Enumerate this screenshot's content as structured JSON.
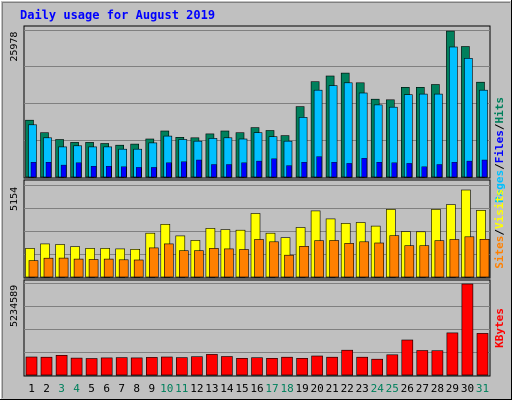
{
  "title": "Daily usage for August 2019",
  "colors": {
    "background": "#c0c0c0",
    "frame": "#000000",
    "title": "#0000ff",
    "gridline": "#808080",
    "hits": "#00805c",
    "files": "#00c0ff",
    "pages": "#0000ff",
    "visits": "#ffff00",
    "sites": "#ff8000",
    "kbytes": "#ff0000",
    "weekend_label": "#00805c",
    "weekday_label": "#000000"
  },
  "chart_data": [
    {
      "type": "bar",
      "panel": "hits-files-pages",
      "categories": [
        "1",
        "2",
        "3",
        "4",
        "5",
        "6",
        "7",
        "8",
        "9",
        "10",
        "11",
        "12",
        "13",
        "14",
        "15",
        "16",
        "17",
        "18",
        "19",
        "20",
        "21",
        "22",
        "23",
        "24",
        "25",
        "26",
        "27",
        "28",
        "29",
        "30",
        "31"
      ],
      "weekend_days": [
        "3",
        "4",
        "10",
        "11",
        "17",
        "18",
        "24",
        "25",
        "31"
      ],
      "axis_max_label": "25978",
      "ylim": [
        0,
        25978
      ],
      "legend": [
        {
          "label": "Hits",
          "color": "#00805c"
        },
        {
          "label": "/",
          "color": "#000000"
        },
        {
          "label": "Files",
          "color": "#0000ff"
        },
        {
          "label": "/",
          "color": "#000000"
        },
        {
          "label": "Pages",
          "color": "#00c0ff"
        }
      ],
      "series": [
        {
          "name": "Hits",
          "color": "#00805c",
          "values": [
            10000,
            7800,
            6600,
            6100,
            6100,
            5900,
            5600,
            5800,
            6700,
            8100,
            7000,
            6900,
            7600,
            8100,
            7800,
            8700,
            8200,
            7300,
            12400,
            16800,
            17800,
            18300,
            16600,
            13700,
            13600,
            15800,
            15800,
            16300,
            25700,
            23000,
            16700
          ]
        },
        {
          "name": "Files",
          "color": "#00c0ff",
          "values": [
            9200,
            6900,
            5300,
            5500,
            5300,
            5300,
            4900,
            4900,
            6000,
            7200,
            6600,
            6300,
            6800,
            6900,
            6700,
            7800,
            7100,
            6300,
            10500,
            15300,
            16100,
            16600,
            14800,
            12700,
            12300,
            14500,
            14600,
            14600,
            22900,
            20900,
            15300
          ]
        },
        {
          "name": "Pages",
          "color": "#0000ff",
          "values": [
            2600,
            2600,
            2100,
            2500,
            1900,
            1900,
            1800,
            1700,
            1700,
            2500,
            2700,
            3000,
            2200,
            2200,
            2500,
            2800,
            3200,
            2000,
            2600,
            3600,
            2600,
            2400,
            3300,
            2600,
            2500,
            2400,
            1800,
            2200,
            2600,
            2800,
            3000
          ]
        }
      ]
    },
    {
      "type": "bar",
      "panel": "visits-sites",
      "categories": [
        "1",
        "2",
        "3",
        "4",
        "5",
        "6",
        "7",
        "8",
        "9",
        "10",
        "11",
        "12",
        "13",
        "14",
        "15",
        "16",
        "17",
        "18",
        "19",
        "20",
        "21",
        "22",
        "23",
        "24",
        "25",
        "26",
        "27",
        "28",
        "29",
        "30",
        "31"
      ],
      "axis_max_label": "5154",
      "ylim": [
        0,
        5154
      ],
      "legend": [
        {
          "label": "Visits",
          "color": "#ffff00"
        },
        {
          "label": "/",
          "color": "#000000"
        },
        {
          "label": "Sites",
          "color": "#ff8000"
        }
      ],
      "series": [
        {
          "name": "Visits",
          "color": "#ffff00",
          "values": [
            1600,
            1850,
            1820,
            1700,
            1600,
            1600,
            1570,
            1550,
            2450,
            2950,
            2300,
            2050,
            2720,
            2650,
            2620,
            3550,
            2450,
            2200,
            2770,
            3700,
            3250,
            3000,
            3050,
            2850,
            3780,
            2540,
            2530,
            3780,
            4050,
            4870,
            3730
          ]
        },
        {
          "name": "Sites",
          "color": "#ff8000",
          "values": [
            920,
            1050,
            1060,
            1000,
            980,
            1000,
            960,
            950,
            1630,
            1850,
            1470,
            1470,
            1600,
            1570,
            1540,
            2100,
            1970,
            1220,
            1720,
            2030,
            2040,
            1880,
            1970,
            1900,
            2310,
            1750,
            1750,
            2030,
            2100,
            2250,
            2110
          ]
        }
      ]
    },
    {
      "type": "bar",
      "panel": "kbytes",
      "categories": [
        "1",
        "2",
        "3",
        "4",
        "5",
        "6",
        "7",
        "8",
        "9",
        "10",
        "11",
        "12",
        "13",
        "14",
        "15",
        "16",
        "17",
        "18",
        "19",
        "20",
        "21",
        "22",
        "23",
        "24",
        "25",
        "26",
        "27",
        "28",
        "29",
        "30",
        "31"
      ],
      "axis_max_label": "5234589",
      "ylim": [
        0,
        5234589
      ],
      "legend": [
        {
          "label": "KBytes",
          "color": "#ff0000"
        }
      ],
      "series": [
        {
          "name": "KBytes",
          "color": "#ff0000",
          "values": [
            1020000,
            1010000,
            1120000,
            960000,
            940000,
            970000,
            990000,
            970000,
            1000000,
            1020000,
            990000,
            1040000,
            1170000,
            1050000,
            950000,
            980000,
            950000,
            1010000,
            950000,
            1080000,
            1010000,
            1410000,
            1010000,
            900000,
            1150000,
            1990000,
            1390000,
            1380000,
            2390000,
            5170000,
            2360000
          ]
        }
      ]
    }
  ]
}
